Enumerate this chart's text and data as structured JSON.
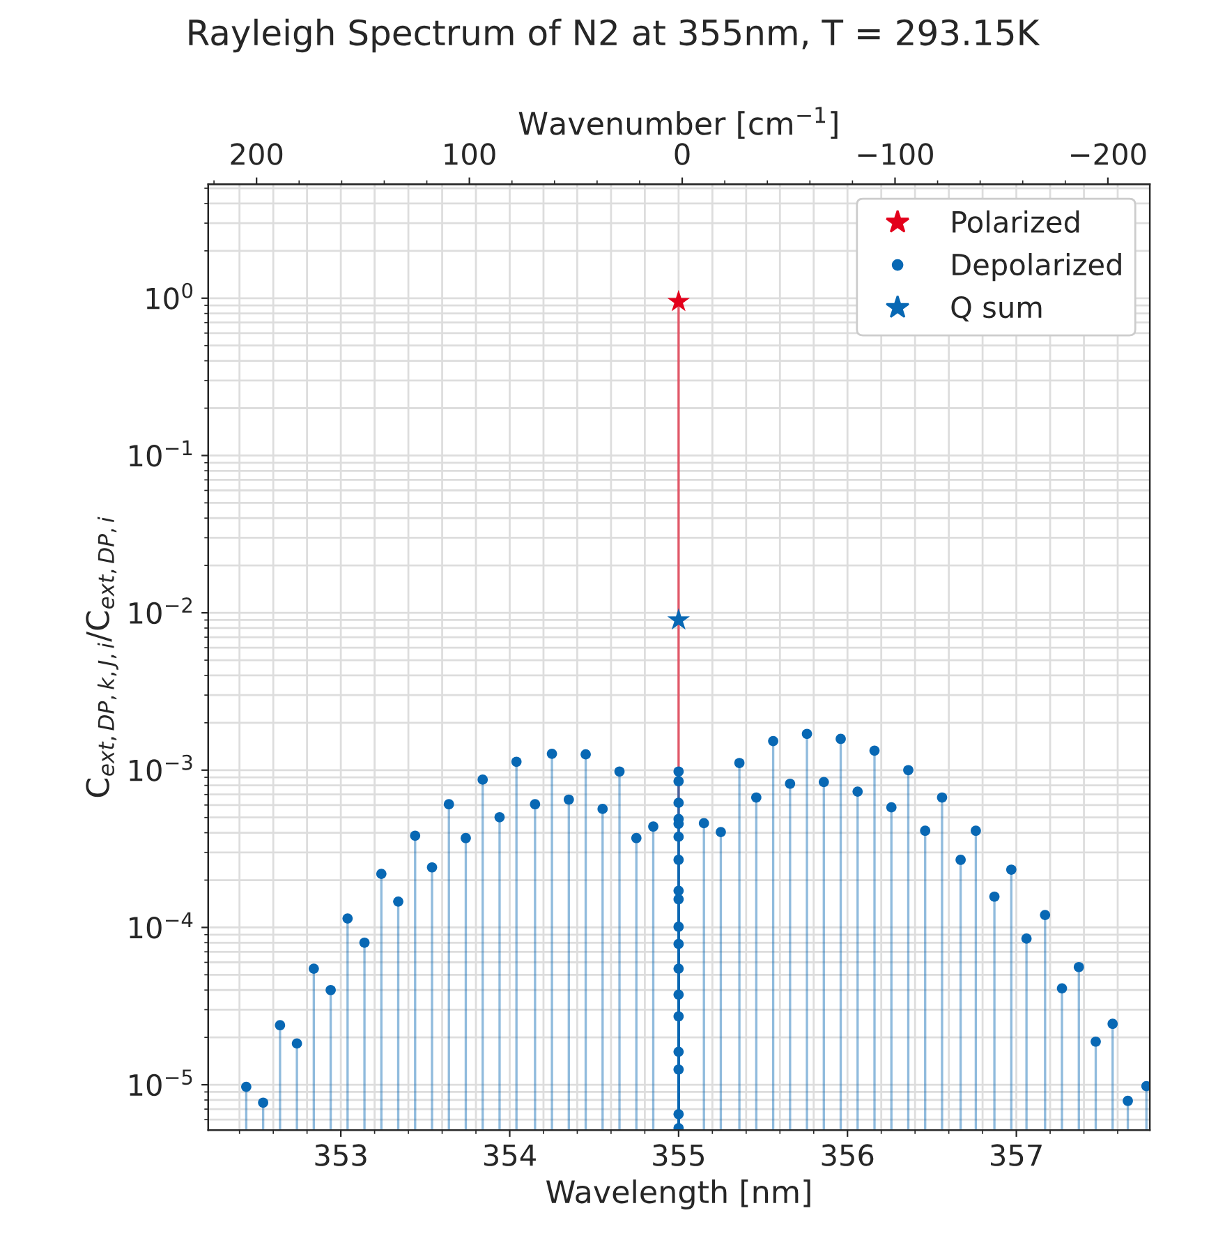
{
  "chart_data": {
    "type": "lollipop",
    "title": "Rayleigh Spectrum of N2 at 355nm, T = 293.15K",
    "xlabel": "Wavelength [nm]",
    "x2label": "Wavenumber [cm$^{−1}$]",
    "ylabel": "C$_{ext,DP,k,J,i}$/C$_{ext,DP,i}$",
    "log": "y",
    "grid": true,
    "legend": "top right",
    "xlim": [
      352.215,
      357.79
    ],
    "xticks": [
      353,
      354,
      355,
      356,
      357
    ],
    "x2lim": [
      222.7,
      -219.7
    ],
    "x2ticks": [
      200,
      100,
      0,
      {
        "value": -100,
        "label": "−100"
      },
      {
        "value": -200,
        "label": "−200"
      }
    ],
    "ylim": [
      5.15e-06,
      5.3
    ],
    "yticks": [
      {
        "value": 1e-05,
        "label": "10$^{−5}$"
      },
      {
        "value": 0.0001,
        "label": "10$^{−4}$"
      },
      {
        "value": 0.001,
        "label": "10$^{−3}$"
      },
      {
        "value": 0.01,
        "label": "10$^{−2}$"
      },
      {
        "value": 0.1,
        "label": "10$^{−1}$"
      },
      {
        "value": 1,
        "label": "10$^{0}$"
      }
    ],
    "series": [
      {
        "name": "Polarized",
        "marker": "star",
        "color": "#e3001b",
        "x": [
          355
        ],
        "values": [
          0.95
        ]
      },
      {
        "name": "Depolarized",
        "marker": "circle",
        "color": "#0868b4",
        "x": [
          352.44,
          352.54,
          352.64,
          352.74,
          352.84,
          352.94,
          353.04,
          353.14,
          353.24,
          353.34,
          353.44,
          353.54,
          353.64,
          353.74,
          353.84,
          353.94,
          354.04,
          354.15,
          354.25,
          354.35,
          354.45,
          354.55,
          354.65,
          354.75,
          354.85,
          355.15,
          355.25,
          355.36,
          355.46,
          355.56,
          355.66,
          355.76,
          355.86,
          355.96,
          356.06,
          356.16,
          356.26,
          356.36,
          356.46,
          356.56,
          356.67,
          356.76,
          356.87,
          356.97,
          357.06,
          357.17,
          357.27,
          357.37,
          357.47,
          357.57,
          357.66,
          357.77,
          355,
          355,
          355,
          355,
          355,
          355,
          355,
          355,
          355,
          355,
          355,
          355,
          355,
          355,
          355,
          355,
          355,
          355
        ],
        "values": [
          9.7e-06,
          7.7e-06,
          2.39e-05,
          1.83e-05,
          5.47e-05,
          4e-05,
          0.000114,
          8e-05,
          0.000219,
          0.000146,
          0.000383,
          0.000241,
          0.000607,
          0.00037,
          0.00087,
          0.000502,
          0.00113,
          0.000607,
          0.00127,
          0.00065,
          0.00126,
          0.000567,
          0.00098,
          0.00037,
          0.000438,
          0.00046,
          0.000404,
          0.00111,
          0.00067,
          0.00153,
          0.00082,
          0.0017,
          0.00084,
          0.00158,
          0.00073,
          0.00133,
          0.00058,
          0.001,
          0.000412,
          0.00067,
          0.000269,
          0.000412,
          0.000157,
          0.000233,
          8.5e-05,
          0.00012,
          4.1e-05,
          5.6e-05,
          1.88e-05,
          2.44e-05,
          7.9e-06,
          9.8e-06,
          0.00098,
          0.00085,
          0.00062,
          0.000489,
          0.000456,
          0.000377,
          0.000269,
          0.000171,
          0.000151,
          0.000101,
          7.85e-05,
          5.47e-05,
          3.74e-05,
          2.72e-05,
          1.62e-05,
          1.25e-05,
          6.5e-06,
          5.3e-06
        ]
      },
      {
        "name": "Q sum",
        "type": "scatter",
        "marker": "star",
        "color": "#0868b4",
        "x": [
          355
        ],
        "values": [
          0.009
        ]
      }
    ]
  }
}
